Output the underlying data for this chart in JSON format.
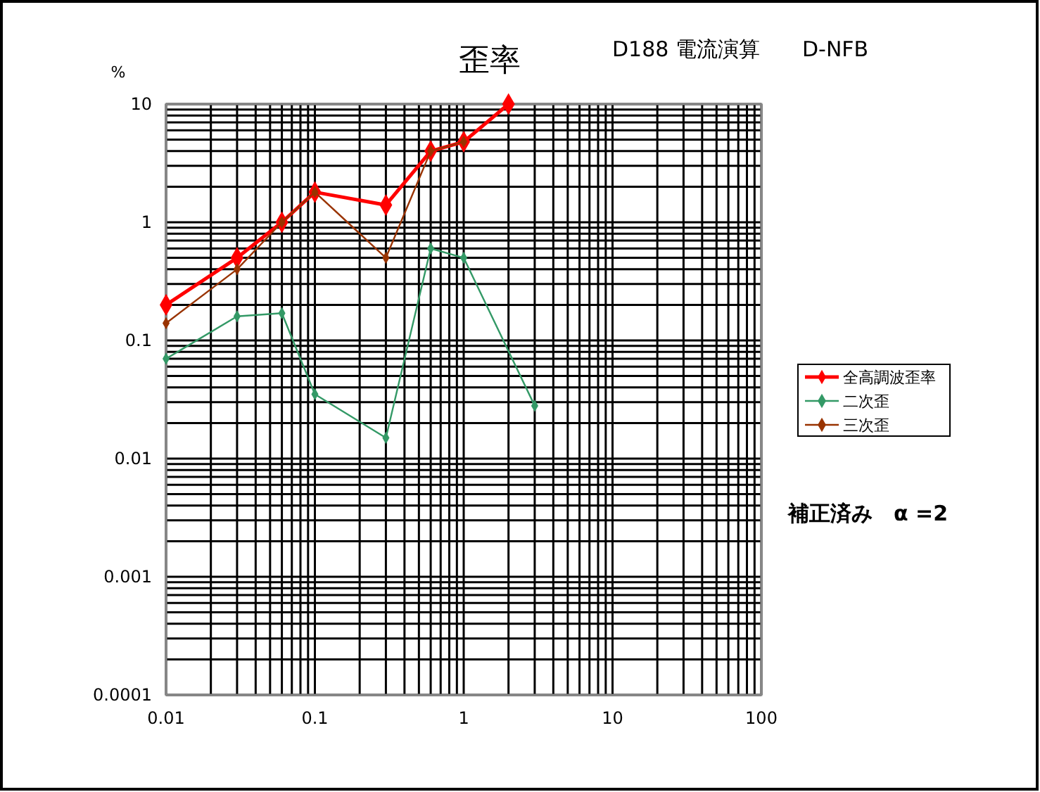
{
  "chart_data": {
    "type": "line",
    "title": "歪率",
    "ylabel": "%",
    "annotations": [
      "D188 電流演算",
      "D-NFB",
      "補正済み　α =2"
    ],
    "log": "xy",
    "grid": true,
    "legend": "right",
    "marker": "diamond",
    "line_style": "solid",
    "xlim": [
      0.01,
      100
    ],
    "xticks": [
      0.01,
      0.1,
      1,
      10,
      100
    ],
    "ylim": [
      0.0001,
      10
    ],
    "yticks": [
      0.0001,
      0.001,
      0.01,
      0.1,
      1,
      10
    ],
    "series": [
      {
        "name": "全高調波歪率",
        "color": "#ff0000",
        "x": [
          0.01,
          0.03,
          0.06,
          0.1,
          0.3,
          0.6,
          1,
          2
        ],
        "values": [
          0.2,
          0.5,
          1.0,
          1.8,
          1.4,
          4,
          4.8,
          10
        ]
      },
      {
        "name": "二次歪",
        "color": "#339966",
        "x": [
          0.01,
          0.03,
          0.06,
          0.1,
          0.3,
          0.6,
          1,
          3
        ],
        "values": [
          0.07,
          0.16,
          0.17,
          0.035,
          0.015,
          0.6,
          0.5,
          0.028
        ]
      },
      {
        "name": "三次歪",
        "color": "#993300",
        "x": [
          0.01,
          0.03,
          0.06,
          0.1,
          0.3,
          0.6,
          1
        ],
        "values": [
          0.14,
          0.4,
          1.0,
          1.8,
          0.5,
          4,
          4.8
        ]
      }
    ]
  }
}
